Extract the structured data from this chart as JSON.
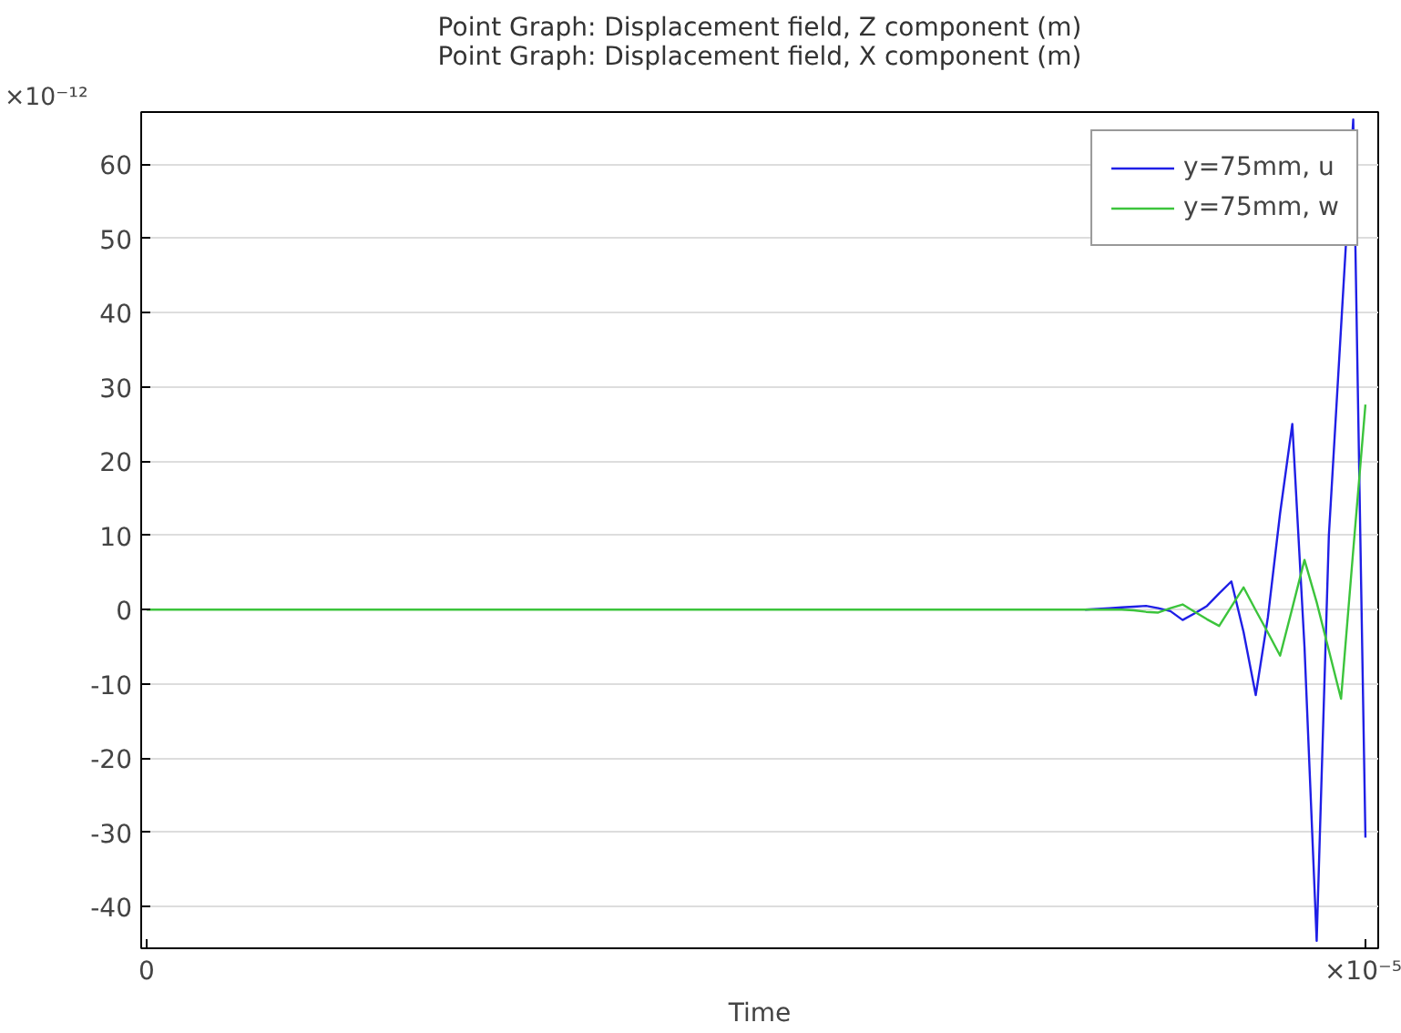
{
  "chart_data": {
    "type": "line",
    "title": "Point Graph: Displacement field, Z component (m)\nPoint Graph: Displacement field, X component (m)",
    "xlabel": "Time",
    "annotations": [
      "×10⁻¹²"
    ],
    "categories": [
      "0",
      null,
      null,
      null,
      null,
      null,
      null,
      null,
      null,
      null,
      null,
      null,
      null,
      null,
      null,
      null,
      null,
      null,
      null,
      null,
      null,
      null,
      null,
      null,
      null,
      null,
      null,
      null,
      null,
      null,
      null,
      null,
      null,
      null,
      null,
      null,
      null,
      null,
      null,
      null,
      null,
      null,
      null,
      null,
      null,
      null,
      null,
      null,
      null,
      null,
      null,
      null,
      null,
      null,
      null,
      null,
      null,
      null,
      null,
      null,
      null,
      null,
      null,
      null,
      null,
      null,
      null,
      null,
      null,
      null,
      null,
      null,
      null,
      null,
      null,
      null,
      null,
      null,
      null,
      null,
      null,
      null,
      null,
      null,
      null,
      null,
      null,
      null,
      null,
      null,
      null,
      null,
      null,
      null,
      null,
      null,
      null,
      null,
      null,
      null,
      "×10⁻⁵"
    ],
    "ylim": [
      -45.6,
      67
    ],
    "yticks": [
      -40,
      -30,
      -20,
      -10,
      0,
      10,
      20,
      30,
      40,
      50,
      60
    ],
    "grid": "y",
    "legend": "top right",
    "line_style": "solid",
    "series": [
      {
        "name": "y=75mm, u",
        "color": "#1f1fe6",
        "values": [
          null,
          null,
          null,
          null,
          null,
          null,
          null,
          null,
          null,
          null,
          null,
          null,
          null,
          null,
          null,
          null,
          null,
          null,
          null,
          null,
          null,
          null,
          null,
          null,
          null,
          null,
          null,
          null,
          null,
          null,
          null,
          null,
          null,
          null,
          null,
          null,
          null,
          null,
          null,
          null,
          null,
          null,
          null,
          null,
          null,
          null,
          null,
          null,
          null,
          null,
          null,
          null,
          null,
          null,
          null,
          null,
          null,
          null,
          null,
          null,
          null,
          null,
          null,
          null,
          null,
          null,
          null,
          null,
          null,
          null,
          null,
          null,
          null,
          null,
          null,
          null,
          null,
          0,
          0.1,
          0.2,
          0.3,
          0.4,
          0.5,
          0.2,
          -0.2,
          -1.4,
          -0.5,
          0.5,
          2.2,
          3.8,
          -3,
          -11.5,
          -1,
          13,
          25,
          -5,
          -44.6,
          10,
          38,
          66,
          -30.7
        ]
      },
      {
        "name": "y=75mm, w",
        "color": "#3cc43c",
        "values": [
          0,
          0,
          0,
          0,
          0,
          0,
          0,
          0,
          0,
          0,
          0,
          0,
          0,
          0,
          0,
          0,
          0,
          0,
          0,
          0,
          0,
          0,
          0,
          0,
          0,
          0,
          0,
          0,
          0,
          0,
          0,
          0,
          0,
          0,
          0,
          0,
          0,
          0,
          0,
          0,
          0,
          0,
          0,
          0,
          0,
          0,
          0,
          0,
          0,
          0,
          0,
          0,
          0,
          0,
          0,
          0,
          0,
          0,
          0,
          0,
          0,
          0,
          0,
          0,
          0,
          0,
          0,
          0,
          0,
          0,
          0,
          0,
          0,
          0,
          0,
          0,
          0,
          0,
          0,
          0,
          0,
          -0.1,
          -0.3,
          -0.4,
          0.2,
          0.7,
          -0.3,
          -1.3,
          -2.2,
          0.4,
          3,
          -0.1,
          -3.1,
          -6.2,
          0.2,
          6.7,
          1,
          -5.5,
          -12,
          8,
          27.6
        ]
      }
    ]
  }
}
